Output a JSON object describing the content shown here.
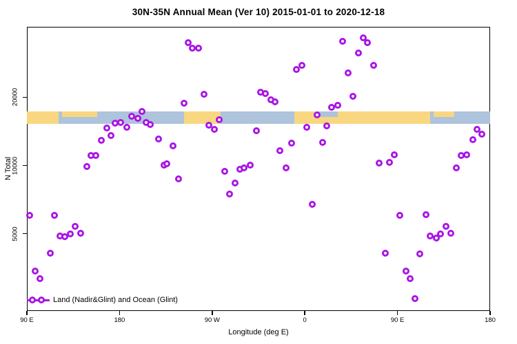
{
  "title": "30N-35N Annual Mean (Ver 10)   2015-01-01 to 2020-12-18",
  "colors": {
    "marker": "#AA14E6",
    "land": "#F8D780",
    "ocean": "#AEC3DC",
    "axis": "#000000",
    "background": "#FFFFFF"
  },
  "legend": {
    "label": "Land (Nadir&Glint) and Ocean (Glint)",
    "position": "bottom-left"
  },
  "chart_data": {
    "type": "scatter",
    "title": "30N-35N Annual Mean (Ver 10)   2015-01-01 to 2020-12-18",
    "xlabel": "Longitude (deg E)",
    "ylabel": "N Total",
    "grid": false,
    "marker": "open-circle",
    "x_axis": {
      "min": 90,
      "max": 540,
      "note": "longitude wraps: 90E to 180 twice around",
      "ticks": [
        {
          "lon": 90,
          "label": "90 E"
        },
        {
          "lon": 180,
          "label": "180"
        },
        {
          "lon": 270,
          "label": "90 W"
        },
        {
          "lon": 360,
          "label": "0"
        },
        {
          "lon": 450,
          "label": "90 E"
        },
        {
          "lon": 540,
          "label": "180"
        }
      ]
    },
    "y_axis": {
      "scale": "log",
      "min": 2280,
      "max": 40900,
      "ticks": [
        {
          "value": 5000,
          "label": "5000"
        },
        {
          "value": 10000,
          "label": "10000"
        },
        {
          "value": 20000,
          "label": "20000"
        }
      ]
    },
    "map_strip": {
      "description": "30N-35N world land/ocean band drawn across plot",
      "value_top": 17300,
      "value_bottom": 15300,
      "segments": [
        {
          "type": "land",
          "from": 90,
          "to": 121
        },
        {
          "type": "ocean",
          "from": 121,
          "to": 243
        },
        {
          "type": "land",
          "from": 243,
          "to": 278
        },
        {
          "type": "ocean",
          "from": 278,
          "to": 350
        },
        {
          "type": "land",
          "from": 350,
          "to": 482
        },
        {
          "type": "ocean",
          "from": 482,
          "to": 540
        }
      ],
      "top_fringe_patches": [
        {
          "type": "land",
          "from": 124,
          "to": 158
        },
        {
          "type": "ocean",
          "from": 371,
          "to": 392
        },
        {
          "type": "land",
          "from": 485,
          "to": 505
        }
      ]
    },
    "series": [
      {
        "name": "Land (Nadir&Glint) and Ocean (Glint)",
        "points": [
          [
            202,
            17280
          ],
          [
            192,
            16460
          ],
          [
            198,
            16110
          ],
          [
            206,
            15450
          ],
          [
            210,
            15140
          ],
          [
            176,
            15350
          ],
          [
            181,
            15450
          ],
          [
            187,
            14720
          ],
          [
            168,
            14620
          ],
          [
            172,
            13540
          ],
          [
            162,
            12890
          ],
          [
            218,
            13070
          ],
          [
            232,
            12190
          ],
          [
            152,
            11060
          ],
          [
            157,
            11060
          ],
          [
            148,
            9900
          ],
          [
            223,
            10030
          ],
          [
            226,
            10170
          ],
          [
            247,
            34920
          ],
          [
            251,
            33040
          ],
          [
            257,
            33040
          ],
          [
            352,
            26430
          ],
          [
            357,
            27560
          ],
          [
            262,
            20560
          ],
          [
            243,
            18780
          ],
          [
            317,
            21000
          ],
          [
            322,
            20710
          ],
          [
            327,
            19450
          ],
          [
            331,
            19050
          ],
          [
            386,
            18010
          ],
          [
            372,
            16690
          ],
          [
            277,
            15890
          ],
          [
            267,
            15030
          ],
          [
            272,
            14420
          ],
          [
            313,
            14220
          ],
          [
            362,
            14720
          ],
          [
            381,
            14930
          ],
          [
            377,
            12630
          ],
          [
            347,
            12540
          ],
          [
            336,
            11610
          ],
          [
            342,
            9760
          ],
          [
            282,
            9430
          ],
          [
            297,
            9620
          ],
          [
            301,
            9760
          ],
          [
            307,
            10030
          ],
          [
            397,
            35410
          ],
          [
            417,
            36660
          ],
          [
            421,
            34920
          ],
          [
            412,
            31450
          ],
          [
            402,
            25520
          ],
          [
            427,
            27560
          ],
          [
            407,
            20140
          ],
          [
            392,
            18400
          ],
          [
            527,
            14420
          ],
          [
            532,
            13730
          ],
          [
            523,
            12980
          ],
          [
            447,
            11140
          ],
          [
            432,
            10250
          ],
          [
            442,
            10320
          ],
          [
            512,
            11060
          ],
          [
            517,
            11140
          ],
          [
            507,
            9760
          ],
          [
            237,
            8730
          ],
          [
            93,
            6040
          ],
          [
            117,
            6040
          ],
          [
            137,
            5400
          ],
          [
            122,
            4900
          ],
          [
            127,
            4860
          ],
          [
            132,
            5000
          ],
          [
            142,
            5030
          ],
          [
            113,
            4110
          ],
          [
            98,
            3430
          ],
          [
            103,
            3160
          ],
          [
            292,
            8370
          ],
          [
            287,
            7490
          ],
          [
            367,
            6750
          ],
          [
            452,
            6040
          ],
          [
            478,
            6080
          ],
          [
            497,
            5400
          ],
          [
            502,
            5030
          ],
          [
            482,
            4900
          ],
          [
            488,
            4800
          ],
          [
            492,
            5000
          ],
          [
            438,
            4110
          ],
          [
            472,
            4080
          ],
          [
            458,
            3430
          ],
          [
            462,
            3160
          ],
          [
            467,
            2580
          ]
        ]
      }
    ]
  }
}
